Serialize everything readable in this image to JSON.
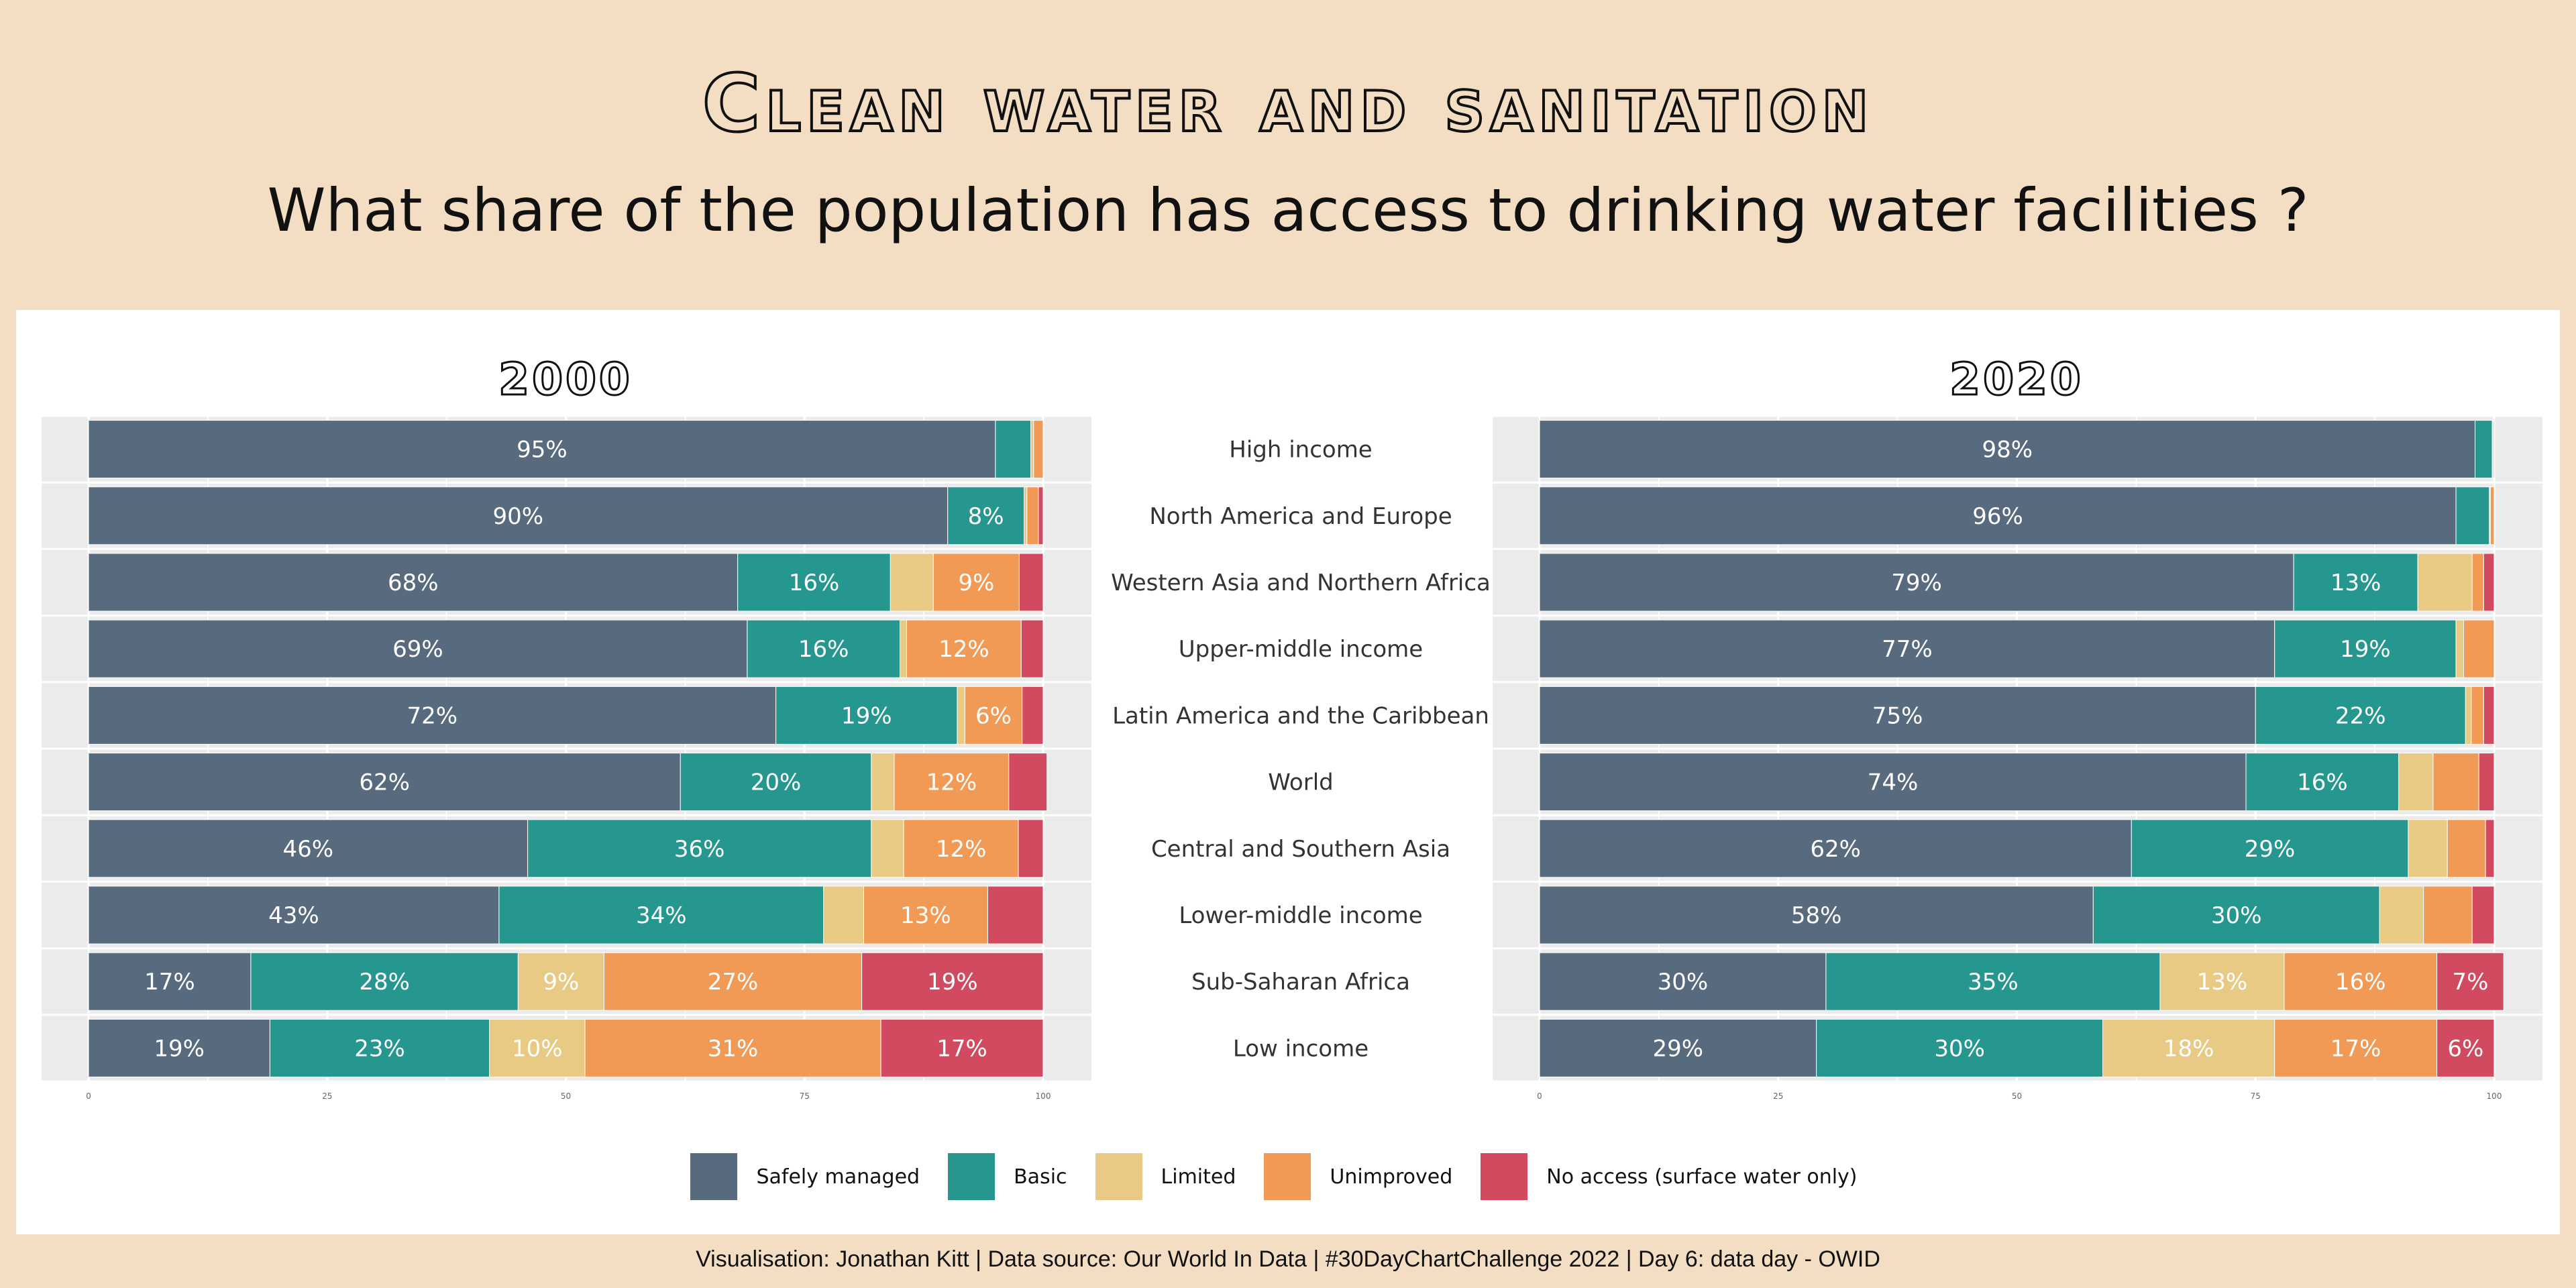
{
  "title": "Clean water and sanitation",
  "subtitle": "What share of the population has access to drinking water facilities ?",
  "caption": "Visualisation: Jonathan Kitt | Data source: Our World In Data | #30DayChartChallenge 2022 | Day 6: data day - OWID",
  "colors": {
    "Safely managed": "#586a7e",
    "Basic": "#26978f",
    "Limited": "#e9ca84",
    "Unimproved": "#f19a55",
    "No access (surface water only)": "#d14a5f",
    "panel_bg": "#ebebeb"
  },
  "legend": [
    "Safely managed",
    "Basic",
    "Limited",
    "Unimproved",
    "No access (surface water only)"
  ],
  "chart_data": [
    {
      "type": "bar",
      "orientation": "horizontal-stacked",
      "title": "2000",
      "xlim": [
        0,
        100
      ],
      "xticks": [
        0,
        25,
        50,
        75,
        100
      ],
      "categories": [
        "High income",
        "North America and Europe",
        "Western Asia and Northern Africa",
        "Upper-middle income",
        "Latin America and the Caribbean",
        "World",
        "Central and Southern Asia",
        "Lower-middle income",
        "Sub-Saharan Africa",
        "Low income"
      ],
      "series": [
        {
          "name": "Safely managed",
          "values": [
            95,
            90,
            68,
            69,
            72,
            62,
            46,
            43,
            17,
            19
          ]
        },
        {
          "name": "Basic",
          "values": [
            3.7,
            8,
            16,
            16,
            19,
            20,
            36,
            34,
            28,
            23
          ]
        },
        {
          "name": "Limited",
          "values": [
            0.3,
            0.3,
            4.5,
            0.7,
            0.8,
            2.4,
            3.4,
            4.2,
            9,
            10
          ]
        },
        {
          "name": "Unimproved",
          "values": [
            1,
            1.2,
            9,
            12,
            6,
            12,
            12,
            13,
            27,
            31
          ]
        },
        {
          "name": "No access (surface water only)",
          "values": [
            0,
            0.5,
            2.5,
            2.3,
            2.2,
            4,
            2.6,
            5.8,
            19,
            17
          ]
        }
      ],
      "labels": [
        [
          "95%",
          "",
          "",
          "",
          ""
        ],
        [
          "90%",
          "8%",
          "",
          "",
          ""
        ],
        [
          "68%",
          "16%",
          "",
          "9%",
          ""
        ],
        [
          "69%",
          "16%",
          "",
          "12%",
          ""
        ],
        [
          "72%",
          "19%",
          "",
          "6%",
          ""
        ],
        [
          "62%",
          "20%",
          "",
          "12%",
          ""
        ],
        [
          "46%",
          "36%",
          "",
          "12%",
          ""
        ],
        [
          "43%",
          "34%",
          "",
          "13%",
          ""
        ],
        [
          "17%",
          "28%",
          "9%",
          "27%",
          "19%"
        ],
        [
          "19%",
          "23%",
          "10%",
          "31%",
          "17%"
        ]
      ]
    },
    {
      "type": "bar",
      "orientation": "horizontal-stacked",
      "title": "2020",
      "xlim": [
        0,
        100
      ],
      "xticks": [
        0,
        25,
        50,
        75,
        100
      ],
      "categories": [
        "High income",
        "North America and Europe",
        "Western Asia and Northern Africa",
        "Upper-middle income",
        "Latin America and the Caribbean",
        "World",
        "Central and Southern Asia",
        "Lower-middle income",
        "Sub-Saharan Africa",
        "Low income"
      ],
      "series": [
        {
          "name": "Safely managed",
          "values": [
            98,
            96,
            79,
            77,
            75,
            74,
            62,
            58,
            30,
            29
          ]
        },
        {
          "name": "Basic",
          "values": [
            1.8,
            3.5,
            13,
            19,
            22,
            16,
            29,
            30,
            35,
            30
          ]
        },
        {
          "name": "Limited",
          "values": [
            0.1,
            0.1,
            5.7,
            0.8,
            0.6,
            3.6,
            4.1,
            4.6,
            13,
            18
          ]
        },
        {
          "name": "Unimproved",
          "values": [
            0.1,
            0.4,
            1.2,
            3.2,
            1.3,
            4.8,
            4,
            5.1,
            16,
            17
          ]
        },
        {
          "name": "No access (surface water only)",
          "values": [
            0,
            0,
            1.1,
            0,
            1.1,
            1.6,
            0.9,
            2.3,
            7,
            6
          ]
        }
      ],
      "labels": [
        [
          "98%",
          "",
          "",
          "",
          ""
        ],
        [
          "96%",
          "",
          "",
          "",
          ""
        ],
        [
          "79%",
          "13%",
          "",
          "",
          ""
        ],
        [
          "77%",
          "19%",
          "",
          "",
          ""
        ],
        [
          "75%",
          "22%",
          "",
          "",
          ""
        ],
        [
          "74%",
          "16%",
          "",
          "",
          ""
        ],
        [
          "62%",
          "29%",
          "",
          "",
          ""
        ],
        [
          "58%",
          "30%",
          "",
          "",
          ""
        ],
        [
          "30%",
          "35%",
          "13%",
          "16%",
          "7%"
        ],
        [
          "29%",
          "30%",
          "18%",
          "17%",
          "6%"
        ]
      ]
    }
  ]
}
